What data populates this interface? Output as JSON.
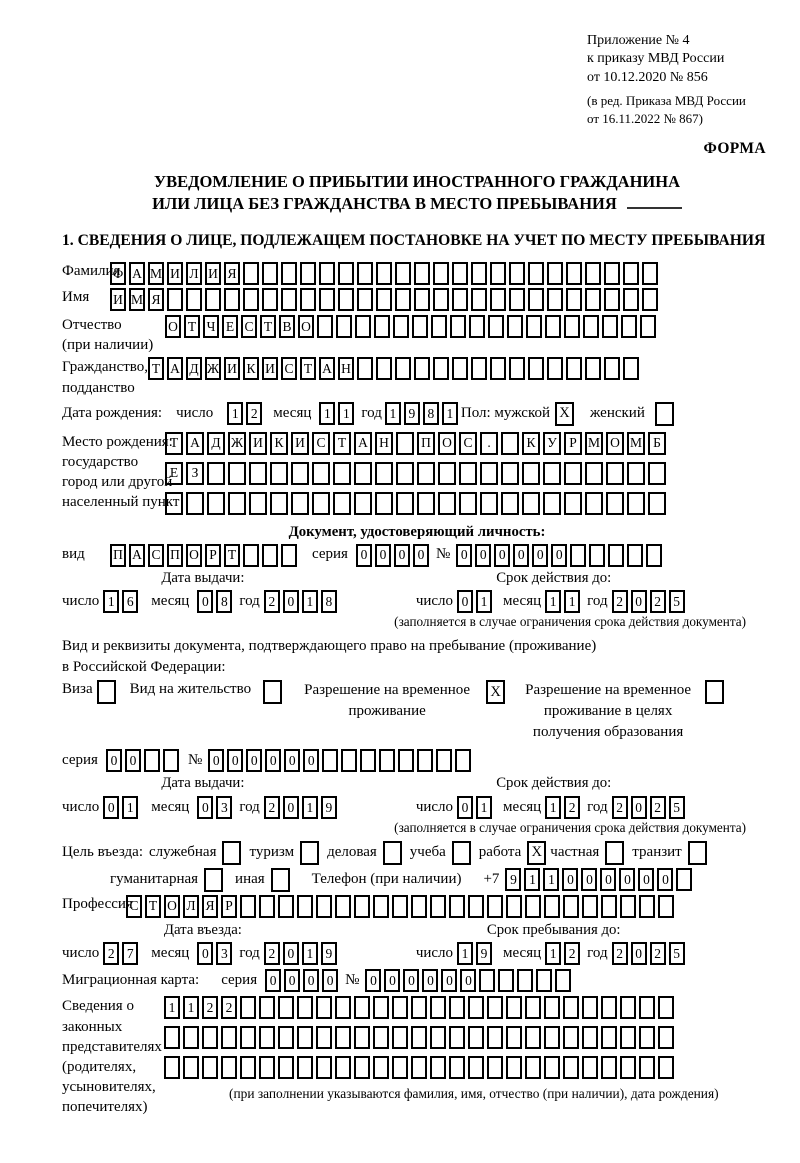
{
  "header": {
    "line1": "Приложение № 4",
    "line2": "к приказу МВД России",
    "line3": "от 10.12.2020 № 856",
    "line4": "(в ред. Приказа МВД России",
    "line5": "от 16.11.2022 № 867)",
    "forma": "ФОРМА"
  },
  "title": {
    "line1": "УВЕДОМЛЕНИЕ О ПРИБЫТИИ ИНОСТРАННОГО ГРАЖДАНИНА",
    "line2": "ИЛИ ЛИЦА БЕЗ ГРАЖДАНСТВА В МЕСТО ПРЕБЫВАНИЯ"
  },
  "section1_heading": "1. СВЕДЕНИЯ О ЛИЦЕ, ПОДЛЕЖАЩЕМ ПОСТАНОВКЕ НА УЧЕТ ПО МЕСТУ ПРЕБЫВАНИЯ",
  "date_labels": {
    "day": "число",
    "month": "месяц",
    "year": "год"
  },
  "fields": {
    "surname": {
      "label": "Фамилия",
      "value": "ФАМИЛИЯ",
      "cells": 29
    },
    "given_name": {
      "label": "Имя",
      "value": "ИМЯ",
      "cells": 29
    },
    "patronymic": {
      "label1": "Отчество",
      "label2": "(при наличии)",
      "value": "ОТЧЕСТВО",
      "cells": 26
    },
    "citizenship": {
      "label1": "Гражданство,",
      "label2": "подданство",
      "value": "ТАДЖИКИСТАН",
      "cells": 26
    },
    "birthdate": {
      "label": "Дата рождения:",
      "day": {
        "value": "12",
        "cells": 2
      },
      "month": {
        "value": "11",
        "cells": 2
      },
      "year": {
        "value": "1981",
        "cells": 4
      },
      "sex_label": "Пол: мужской",
      "male_mark": "X",
      "female_label": "женский",
      "female_mark": ""
    },
    "birthplace": {
      "label1": "Место рождения:",
      "label2": "государство",
      "label3": "город или другой",
      "label4": "населенный пункт",
      "row1": {
        "value": "ТАДЖИКИСТАН ПОС. КУРМОМБ",
        "cells": 24
      },
      "row2": {
        "value": "ЕЗ",
        "cells": 24
      },
      "row3": {
        "value": "",
        "cells": 24
      }
    },
    "identity_doc": {
      "heading": "Документ, удостоверяющий личность:",
      "type_label": "вид",
      "type": {
        "value": "ПАСПОРТ",
        "cells": 10
      },
      "series_label": "серия",
      "series": {
        "value": "0000",
        "cells": 4
      },
      "number_label": "№",
      "number": {
        "value": "000000",
        "cells": 11
      },
      "issue_head": "Дата выдачи:",
      "issue_day": {
        "value": "16",
        "cells": 2
      },
      "issue_month": {
        "value": "08",
        "cells": 2
      },
      "issue_year": {
        "value": "2018",
        "cells": 4
      },
      "valid_head": "Срок действия до:",
      "valid_day": {
        "value": "01",
        "cells": 2
      },
      "valid_month": {
        "value": "11",
        "cells": 2
      },
      "valid_year": {
        "value": "2025",
        "cells": 4
      },
      "note": "(заполняется в случае ограничения срока действия документа)"
    },
    "residence_doc": {
      "intro1": "Вид и реквизиты документа, подтверждающего право на пребывание (проживание)",
      "intro2": "в Российской Федерации:",
      "opt1_label": "Виза",
      "opt1_mark": "",
      "opt2_label": "Вид на жительство",
      "opt2_mark": "",
      "opt3_label": "Разрешение на временное проживание",
      "opt3_mark": "X",
      "opt4_label": "Разрешение на временное проживание в целях получения образования",
      "opt4_mark": "",
      "series_label": "серия",
      "series": {
        "value": "00",
        "cells": 4
      },
      "number_label": "№",
      "number": {
        "value": "000000",
        "cells": 14
      },
      "issue_head": "Дата выдачи:",
      "issue_day": {
        "value": "01",
        "cells": 2
      },
      "issue_month": {
        "value": "03",
        "cells": 2
      },
      "issue_year": {
        "value": "2019",
        "cells": 4
      },
      "valid_head": "Срок действия до:",
      "valid_day": {
        "value": "01",
        "cells": 2
      },
      "valid_month": {
        "value": "12",
        "cells": 2
      },
      "valid_year": {
        "value": "2025",
        "cells": 4
      },
      "note": "(заполняется в случае ограничения срока действия документа)"
    },
    "purpose": {
      "label": "Цель въезда:",
      "opt_official": "служебная",
      "mark_official": "",
      "opt_tourism": "туризм",
      "mark_tourism": "",
      "opt_business": "деловая",
      "mark_business": "",
      "opt_study": "учеба",
      "mark_study": "",
      "opt_work": "работа",
      "mark_work": "X",
      "opt_private": "частная",
      "mark_private": "",
      "opt_transit": "транзит",
      "mark_transit": "",
      "opt_humanitarian": "гуманитарная",
      "mark_humanitarian": "",
      "opt_other": "иная",
      "mark_other": ""
    },
    "phone": {
      "label": "Телефон (при наличии)",
      "prefix": "+7",
      "value": "911000000",
      "cells": 10
    },
    "profession": {
      "label": "Профессия",
      "value": "СТОЛЯР",
      "cells": 29
    },
    "entry_date": {
      "head": "Дата въезда:",
      "day": {
        "value": "27",
        "cells": 2
      },
      "month": {
        "value": "03",
        "cells": 2
      },
      "year": {
        "value": "2019",
        "cells": 4
      }
    },
    "stay_until": {
      "head": "Срок пребывания до:",
      "day": {
        "value": "19",
        "cells": 2
      },
      "month": {
        "value": "12",
        "cells": 2
      },
      "year": {
        "value": "2025",
        "cells": 4
      }
    },
    "migration_card": {
      "label": "Миграционная карта:",
      "series_label": "серия",
      "series": {
        "value": "0000",
        "cells": 4
      },
      "number_label": "№",
      "number": {
        "value": "000000",
        "cells": 11
      }
    },
    "representatives": {
      "label1": "Сведения о",
      "label2": "законных",
      "label3": "представителях",
      "label4": "(родителях,",
      "label5": "усыновителях,",
      "label6": "попечителях)",
      "row1": {
        "value": "1122",
        "cells": 27
      },
      "row2": {
        "value": "",
        "cells": 27
      },
      "row3": {
        "value": "",
        "cells": 27
      },
      "note": "(при заполнении указываются фамилия, имя, отчество (при наличии), дата рождения)"
    }
  }
}
